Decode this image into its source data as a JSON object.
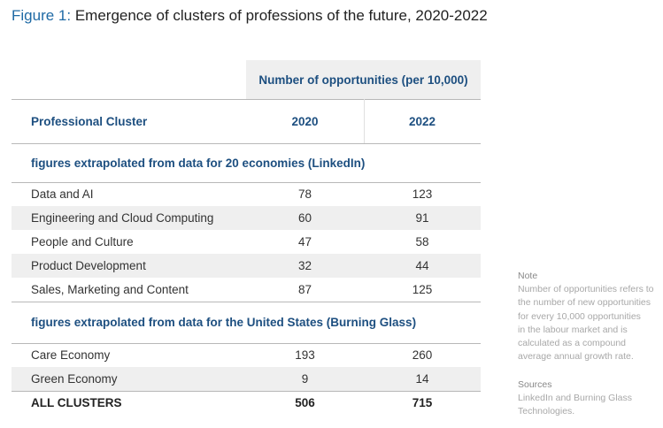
{
  "figure": {
    "label": "Figure 1:",
    "title": "Emergence of clusters of professions of the future, 2020-2022"
  },
  "table": {
    "group_header": "Number of opportunities (per 10,000)",
    "columns": [
      "Professional Cluster",
      "2020",
      "2022"
    ],
    "sections": [
      {
        "heading": "figures extrapolated from data for 20 economies (LinkedIn)",
        "rows": [
          [
            "Data and AI",
            78,
            123
          ],
          [
            "Engineering and Cloud Computing",
            60,
            91
          ],
          [
            "People and Culture",
            47,
            58
          ],
          [
            "Product Development",
            32,
            44
          ],
          [
            "Sales, Marketing and Content",
            87,
            125
          ]
        ]
      },
      {
        "heading": "figures extrapolated from data for the United States (Burning Glass)",
        "rows": [
          [
            "Care Economy",
            193,
            260
          ],
          [
            "Green Economy",
            9,
            14
          ]
        ]
      }
    ],
    "total": [
      "ALL CLUSTERS",
      506,
      715
    ]
  },
  "note": {
    "heading": "Note",
    "lines": [
      "Number of opportunities refers to",
      "the number of new opportunities",
      "for every 10,000 opportunities",
      "in the labour market and is",
      "calculated as a compound",
      "average annual growth rate."
    ]
  },
  "sources": {
    "heading": "Sources",
    "lines": [
      "LinkedIn and Burning Glass",
      "Technologies."
    ]
  }
}
